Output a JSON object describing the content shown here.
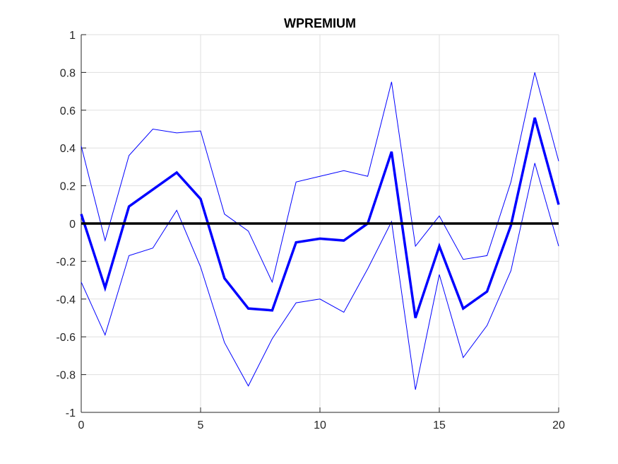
{
  "chart_data": {
    "type": "line",
    "title": "WPREMIUM",
    "xlabel": "",
    "ylabel": "",
    "xlim": [
      0,
      20
    ],
    "ylim": [
      -1,
      1
    ],
    "xticks": [
      0,
      5,
      10,
      15,
      20
    ],
    "yticks": [
      -1,
      -0.8,
      -0.6,
      -0.4,
      -0.2,
      0,
      0.2,
      0.4,
      0.6,
      0.8,
      1
    ],
    "xtick_labels": [
      "0",
      "5",
      "10",
      "15",
      "20"
    ],
    "ytick_labels": [
      "-1",
      "-0.8",
      "-0.6",
      "-0.4",
      "-0.2",
      "0",
      "0.2",
      "0.4",
      "0.6",
      "0.8",
      "1"
    ],
    "grid": true,
    "x": [
      0,
      1,
      2,
      3,
      4,
      5,
      6,
      7,
      8,
      9,
      10,
      11,
      12,
      13,
      14,
      15,
      16,
      17,
      18,
      19,
      20
    ],
    "series": [
      {
        "role": "estimate",
        "color": "#0000ff",
        "values": [
          0.05,
          -0.34,
          0.09,
          0.18,
          0.27,
          0.13,
          -0.29,
          -0.45,
          -0.46,
          -0.1,
          -0.08,
          -0.09,
          0.0,
          0.38,
          -0.5,
          -0.12,
          -0.45,
          -0.36,
          -0.01,
          0.56,
          0.1
        ]
      },
      {
        "role": "upper-band",
        "color": "#0000ff",
        "values": [
          0.41,
          -0.09,
          0.36,
          0.5,
          0.48,
          0.49,
          0.05,
          -0.04,
          -0.31,
          0.22,
          0.25,
          0.28,
          0.25,
          0.75,
          -0.12,
          0.04,
          -0.19,
          -0.17,
          0.22,
          0.8,
          0.33
        ]
      },
      {
        "role": "lower-band",
        "color": "#0000ff",
        "values": [
          -0.31,
          -0.59,
          -0.17,
          -0.13,
          0.07,
          -0.23,
          -0.63,
          -0.86,
          -0.61,
          -0.42,
          -0.4,
          -0.47,
          -0.24,
          0.01,
          -0.88,
          -0.27,
          -0.71,
          -0.54,
          -0.25,
          0.32,
          -0.12
        ]
      }
    ],
    "zero_line": {
      "y": 0,
      "color": "#000000"
    }
  }
}
